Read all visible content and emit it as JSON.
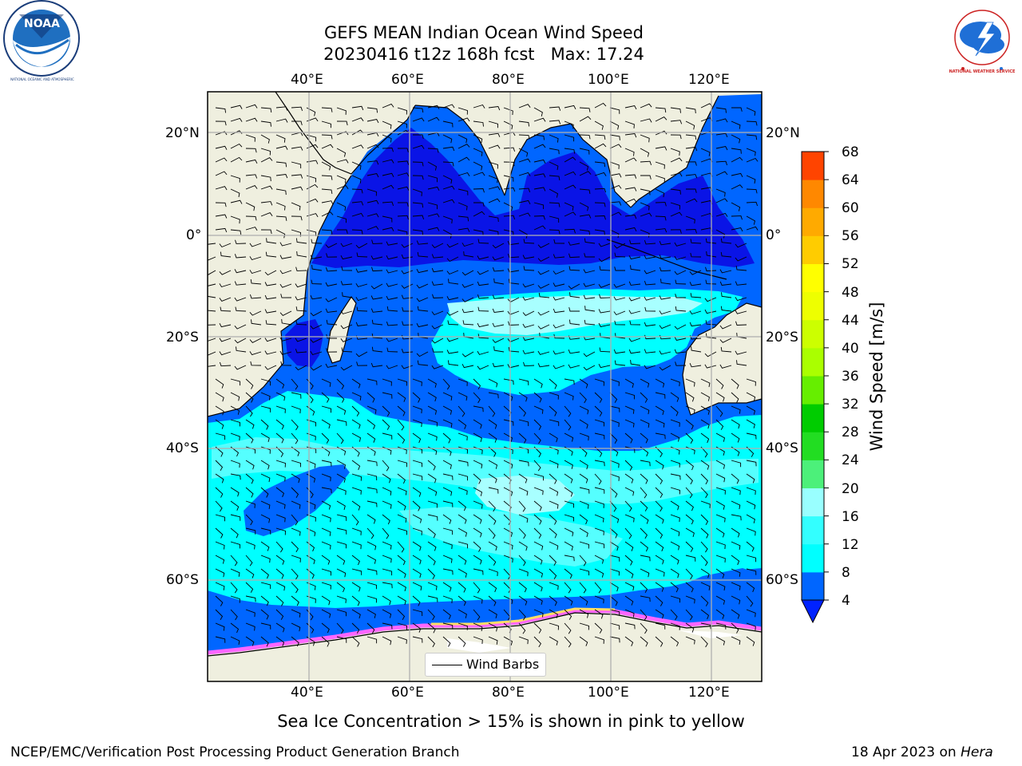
{
  "title": {
    "line1": "GEFS MEAN Indian Ocean Wind Speed",
    "line2": "20230416 t12z 168h fcst   Max: 17.24"
  },
  "lon_labels": [
    "40°E",
    "60°E",
    "80°E",
    "100°E",
    "120°E"
  ],
  "lat_labels": [
    "20°N",
    "0°",
    "20°S",
    "40°S",
    "60°S"
  ],
  "colorbar": {
    "label": "Wind Speed [m/s]",
    "ticks": [
      "4",
      "8",
      "12",
      "16",
      "20",
      "24",
      "28",
      "32",
      "36",
      "40",
      "44",
      "48",
      "52",
      "56",
      "60",
      "64",
      "68"
    ],
    "colors": [
      "#0066ff",
      "#00ffff",
      "#33ffff",
      "#99ffff",
      "#4cf07a",
      "#22dd22",
      "#00cc00",
      "#66ee00",
      "#aaff00",
      "#ccff00",
      "#eeff00",
      "#ffff00",
      "#ffcc00",
      "#ffaa00",
      "#ff8800",
      "#ff4400",
      "#ff1100",
      "#ff0000"
    ],
    "under_color": "#0022ff"
  },
  "legend": {
    "label": "Wind Barbs"
  },
  "caption": "Sea Ice Concentration > 15% is shown in pink to yellow",
  "footer": {
    "left": "NCEP/EMC/Verification Post Processing Product Generation Branch",
    "right_date": "18 Apr 2023 on ",
    "right_host": "Hera"
  },
  "logos": {
    "noaa_text": "NOAA",
    "noaa_ring": "NATIONAL OCEANIC AND ATMOSPHERIC ADMINISTRATION · U.S. DEPARTMENT OF COMMERCE",
    "nws_ring": "NATIONAL WEATHER SERVICE"
  },
  "map_colors": {
    "land": "#efefdf",
    "ocean_dark": "#0a14e6",
    "ocean_mid": "#0066ff",
    "ocean_cyan": "#00ffff",
    "ocean_light": "#55ffff",
    "ocean_pale": "#a8ffff",
    "ice": "#ff66ff"
  }
}
